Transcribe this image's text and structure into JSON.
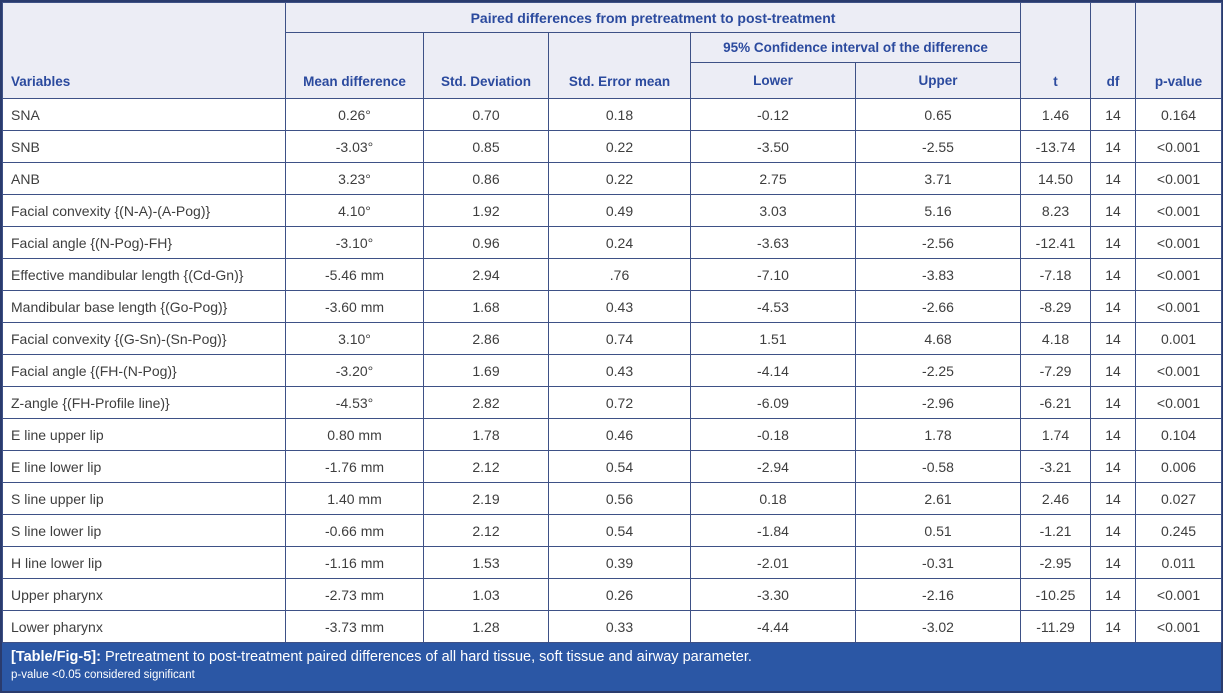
{
  "table": {
    "header": {
      "variables": "Variables",
      "paired_title": "Paired differences from pretreatment to post-treatment",
      "ci_title": "95% Confidence interval of the difference",
      "mean_difference": "Mean difference",
      "std_deviation": "Std. Deviation",
      "std_error_mean": "Std. Error mean",
      "lower": "Lower",
      "upper": "Upper",
      "t": "t",
      "df": "df",
      "p_value": "p-value"
    },
    "rows": [
      [
        "SNA",
        "0.26°",
        "0.70",
        "0.18",
        "-0.12",
        "0.65",
        "1.46",
        "14",
        "0.164"
      ],
      [
        "SNB",
        "-3.03°",
        "0.85",
        "0.22",
        "-3.50",
        "-2.55",
        "-13.74",
        "14",
        "<0.001"
      ],
      [
        "ANB",
        "3.23°",
        "0.86",
        "0.22",
        "2.75",
        "3.71",
        "14.50",
        "14",
        "<0.001"
      ],
      [
        "Facial convexity {(N-A)-(A-Pog)}",
        "4.10°",
        "1.92",
        "0.49",
        "3.03",
        "5.16",
        "8.23",
        "14",
        "<0.001"
      ],
      [
        "Facial angle {(N-Pog)-FH}",
        "-3.10°",
        "0.96",
        "0.24",
        "-3.63",
        "-2.56",
        "-12.41",
        "14",
        "<0.001"
      ],
      [
        "Effective mandibular length {(Cd-Gn)}",
        "-5.46 mm",
        "2.94",
        ".76",
        "-7.10",
        "-3.83",
        "-7.18",
        "14",
        "<0.001"
      ],
      [
        "Mandibular base length {(Go-Pog)}",
        "-3.60 mm",
        "1.68",
        "0.43",
        "-4.53",
        "-2.66",
        "-8.29",
        "14",
        "<0.001"
      ],
      [
        "Facial convexity {(G-Sn)-(Sn-Pog)}",
        "3.10°",
        "2.86",
        "0.74",
        "1.51",
        "4.68",
        "4.18",
        "14",
        "0.001"
      ],
      [
        "Facial angle {(FH-(N-Pog)}",
        "-3.20°",
        "1.69",
        "0.43",
        "-4.14",
        "-2.25",
        "-7.29",
        "14",
        "<0.001"
      ],
      [
        "Z-angle {(FH-Profile line)}",
        "-4.53°",
        "2.82",
        "0.72",
        "-6.09",
        "-2.96",
        "-6.21",
        "14",
        "<0.001"
      ],
      [
        "E line upper lip",
        "0.80 mm",
        "1.78",
        "0.46",
        "-0.18",
        "1.78",
        "1.74",
        "14",
        "0.104"
      ],
      [
        "E line lower lip",
        "-1.76 mm",
        "2.12",
        "0.54",
        "-2.94",
        "-0.58",
        "-3.21",
        "14",
        "0.006"
      ],
      [
        "S line upper lip",
        "1.40 mm",
        "2.19",
        "0.56",
        "0.18",
        "2.61",
        "2.46",
        "14",
        "0.027"
      ],
      [
        "S line lower lip",
        "-0.66 mm",
        "2.12",
        "0.54",
        "-1.84",
        "0.51",
        "-1.21",
        "14",
        "0.245"
      ],
      [
        "H line lower lip",
        "-1.16 mm",
        "1.53",
        "0.39",
        "-2.01",
        "-0.31",
        "-2.95",
        "14",
        "0.011"
      ],
      [
        "Upper pharynx",
        "-2.73 mm",
        "1.03",
        "0.26",
        "-3.30",
        "-2.16",
        "-10.25",
        "14",
        "<0.001"
      ],
      [
        "Lower pharynx",
        "-3.73 mm",
        "1.28",
        "0.33",
        "-4.44",
        "-3.02",
        "-11.29",
        "14",
        "<0.001"
      ]
    ]
  },
  "footer": {
    "label": "[Table/Fig-5]:",
    "caption": " Pretreatment to post-treatment paired differences of all hard tissue, soft tissue and airway parameter.",
    "note": "p-value <0.05 considered significant"
  },
  "colors": {
    "header_bg": "#ecedf5",
    "header_text": "#2b4a9e",
    "grid_border": "#3e5186",
    "outer_border": "#2a3b6d",
    "body_text": "#3e3e3e",
    "footer_bg": "#2b57a5",
    "footer_text": "#ffffff"
  }
}
